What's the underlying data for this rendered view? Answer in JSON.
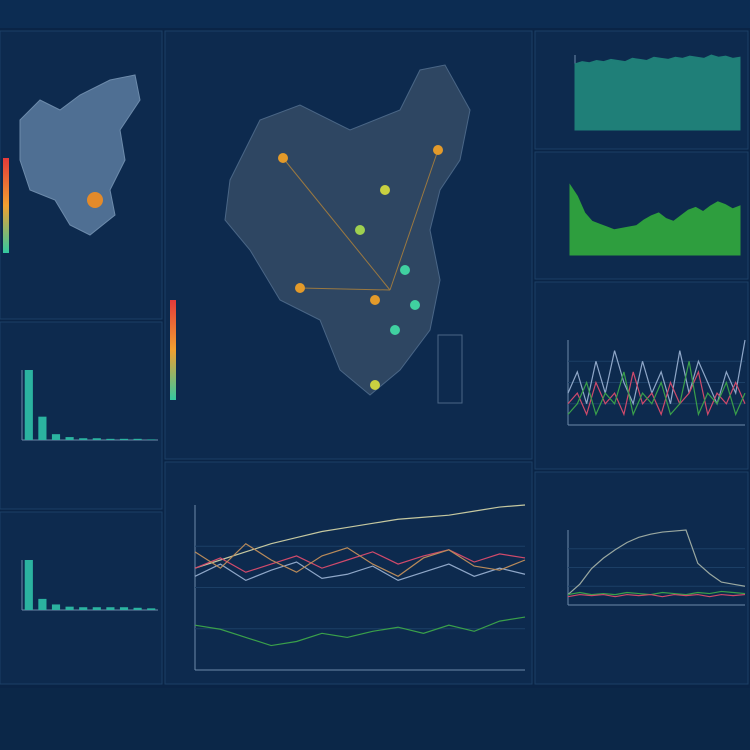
{
  "panels": {
    "bar_left_1": {
      "color": "#2bb3a0",
      "values": [
        12,
        4,
        1,
        0.5,
        0.3,
        0.3,
        0.2,
        0.2,
        0.2,
        0.1
      ]
    },
    "bar_left_2": {
      "color": "#2bb3a0",
      "values": [
        9,
        2,
        1,
        0.6,
        0.5,
        0.5,
        0.5,
        0.5,
        0.4,
        0.3
      ]
    },
    "area_top": {
      "color": "#1f7f78",
      "values": [
        6,
        6.2,
        6.1,
        6.3,
        6.2,
        6.4,
        6.3,
        6.2,
        6.5,
        6.4,
        6.3,
        6.6,
        6.5,
        6.4,
        6.6,
        6.5,
        6.7,
        6.6,
        6.5,
        6.8,
        6.6,
        6.7,
        6.5,
        6.6
      ]
    },
    "area_green": {
      "color": "#2e9e3e",
      "values": [
        5,
        4.2,
        3,
        2.4,
        2.2,
        2,
        1.8,
        1.9,
        2,
        2.1,
        2.5,
        2.8,
        3,
        2.6,
        2.4,
        2.8,
        3.2,
        3.4,
        3.1,
        3.5,
        3.8,
        3.6,
        3.3,
        3.5
      ]
    },
    "lines_middle": {
      "series": [
        {
          "color": "#c5c8a0",
          "values": [
            5,
            5.4,
            5.8,
            6.2,
            6.5,
            6.8,
            7,
            7.2,
            7.4,
            7.5,
            7.6,
            7.8,
            8,
            8.1
          ]
        },
        {
          "color": "#d04a6b",
          "values": [
            5,
            5.5,
            4.8,
            5.2,
            5.6,
            5,
            5.4,
            5.8,
            5.2,
            5.6,
            5.9,
            5.3,
            5.7,
            5.5
          ]
        },
        {
          "color": "#8fa7c8",
          "values": [
            4.6,
            5.2,
            4.4,
            4.9,
            5.3,
            4.5,
            4.7,
            5.1,
            4.4,
            4.8,
            5.2,
            4.6,
            5,
            4.7
          ]
        },
        {
          "color": "#b88a5a",
          "values": [
            5.8,
            5,
            6.2,
            5.4,
            4.8,
            5.6,
            6,
            5.2,
            4.6,
            5.5,
            5.9,
            5.1,
            4.9,
            5.4
          ]
        },
        {
          "color": "#3aa04a",
          "values": [
            2.2,
            2,
            1.6,
            1.2,
            1.4,
            1.8,
            1.6,
            1.9,
            2.1,
            1.8,
            2.2,
            1.9,
            2.4,
            2.6
          ]
        }
      ]
    },
    "lines_right_1": {
      "series": [
        {
          "color": "#8fa7c8",
          "values": [
            3,
            5,
            2,
            6,
            3,
            7,
            4,
            2,
            6,
            3,
            5,
            2,
            7,
            3,
            6,
            4,
            2,
            5,
            3,
            8
          ]
        },
        {
          "color": "#d04a6b",
          "values": [
            2,
            3,
            1,
            4,
            2,
            3,
            1,
            5,
            2,
            3,
            1,
            4,
            2,
            3,
            5,
            1,
            3,
            2,
            4,
            2
          ]
        },
        {
          "color": "#3aa04a",
          "values": [
            1,
            2,
            4,
            1,
            3,
            2,
            5,
            1,
            3,
            2,
            4,
            1,
            2,
            6,
            1,
            3,
            2,
            4,
            1,
            3
          ]
        }
      ]
    },
    "lines_right_2": {
      "series": [
        {
          "color": "#9aa8a0",
          "values": [
            1,
            2,
            3.5,
            4.5,
            5.3,
            6,
            6.5,
            6.8,
            7,
            7.1,
            7.2,
            4,
            3,
            2.2,
            2,
            1.8
          ]
        },
        {
          "color": "#3aa04a",
          "values": [
            1,
            1.2,
            1,
            1.1,
            1,
            1.2,
            1.1,
            1,
            1.2,
            1.1,
            1,
            1.2,
            1.1,
            1.3,
            1.2,
            1.1
          ]
        },
        {
          "color": "#d04a6b",
          "values": [
            0.8,
            1,
            0.9,
            1,
            0.8,
            1,
            0.9,
            1,
            0.8,
            1,
            0.9,
            1,
            0.8,
            1,
            0.9,
            1
          ]
        }
      ]
    }
  }
}
